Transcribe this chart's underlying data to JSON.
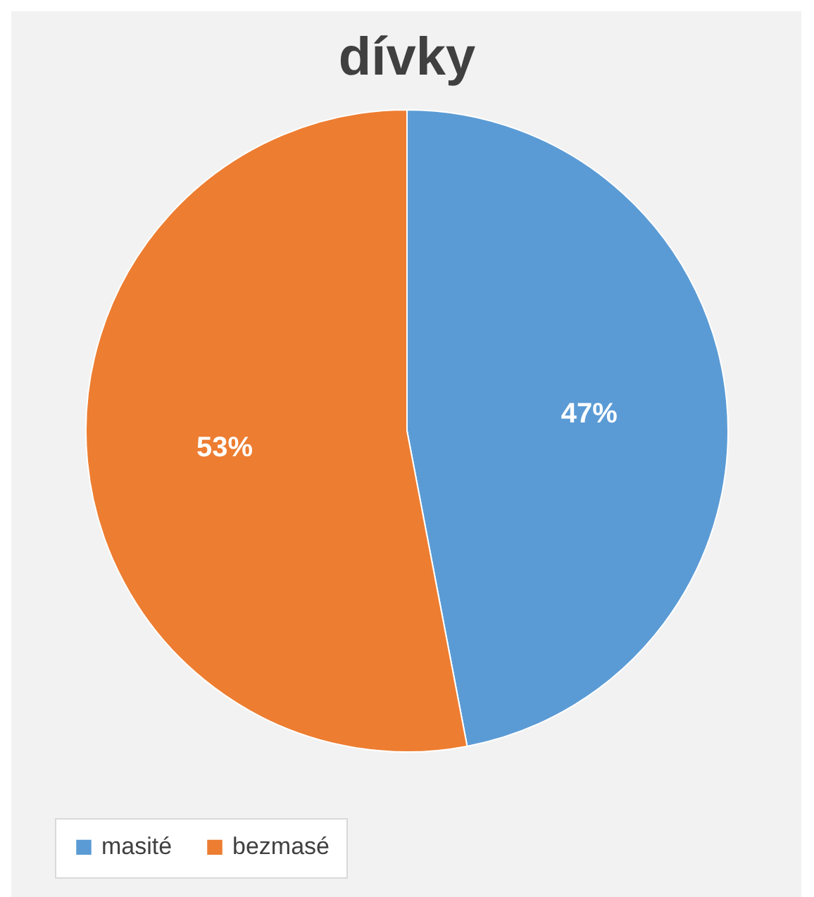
{
  "chart_data": {
    "type": "pie",
    "title": "dívky",
    "categories": [
      "masité",
      "bezmasé"
    ],
    "values": [
      47,
      53
    ],
    "colors": [
      "#5b9bd5",
      "#ed7d31"
    ],
    "value_labels": [
      "47%",
      "53%"
    ],
    "legend": "bottom"
  }
}
